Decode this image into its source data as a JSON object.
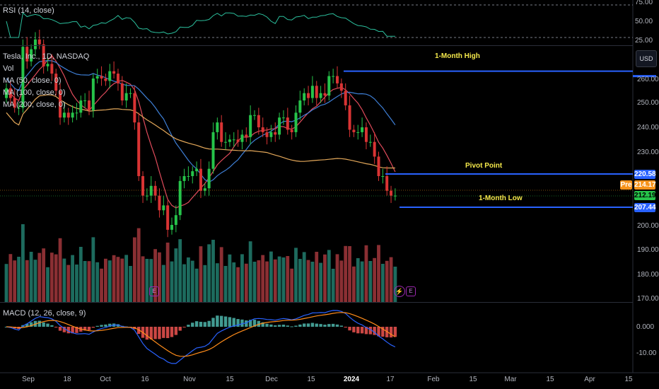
{
  "rsi": {
    "legend": "RSI (14, close)",
    "axis_ticks": [
      "75.00",
      "50.00",
      "25.00"
    ]
  },
  "main": {
    "legend": {
      "symbol": "Tesla, Inc., 1D, NASDAQ",
      "vol": "Vol",
      "ma50": "MA (50, close, 0)",
      "ma100": "MA (100, close, 0)",
      "ma200": "MA (200, close, 0)"
    },
    "currency_button": "USD",
    "axis_ticks": [
      "260.00",
      "250.00",
      "240.00",
      "230.00",
      "200.00",
      "190.00",
      "180.00",
      "170.00"
    ],
    "level_tags": {
      "pivot": "220.58",
      "pre_label": "Pre",
      "pre": "214.17",
      "last": "212.19",
      "low": "207.44"
    },
    "level_names": {
      "high": "1-Month High",
      "pivot": "Pivot Point",
      "low": "1-Month Low"
    },
    "earnings_marker": "E"
  },
  "macd": {
    "legend": "MACD (12, 26, close, 9)",
    "axis_ticks": [
      "0.000",
      "-10.00"
    ]
  },
  "time_axis": [
    "Sep",
    "18",
    "Oct",
    "16",
    "Nov",
    "15",
    "Dec",
    "15",
    "2024",
    "17",
    "Feb",
    "15",
    "Mar",
    "15",
    "Apr",
    "15"
  ],
  "colors": {
    "up": "#26c44a",
    "down": "#d93434",
    "ma50": "#e04b5b",
    "ma100": "#3e7fd6",
    "ma200": "#e4a85a",
    "level": "#2962ff",
    "level_text": "#f5e94b"
  },
  "chart_data": {
    "type": "candlestick",
    "dates": [
      "Sep 5",
      "Sep 6",
      "Sep 7",
      "Sep 8",
      "Sep 11",
      "Sep 12",
      "Sep 13",
      "Sep 14",
      "Sep 15",
      "Sep 18",
      "Sep 19",
      "Sep 20",
      "Sep 21",
      "Sep 22",
      "Sep 25",
      "Sep 26",
      "Sep 27",
      "Sep 28",
      "Sep 29",
      "Oct 2",
      "Oct 3",
      "Oct 4",
      "Oct 5",
      "Oct 6",
      "Oct 9",
      "Oct 10",
      "Oct 11",
      "Oct 12",
      "Oct 13",
      "Oct 16",
      "Oct 17",
      "Oct 18",
      "Oct 19",
      "Oct 20",
      "Oct 23",
      "Oct 24",
      "Oct 25",
      "Oct 26",
      "Oct 27",
      "Oct 30",
      "Oct 31",
      "Nov 1",
      "Nov 2",
      "Nov 3",
      "Nov 6",
      "Nov 7",
      "Nov 8",
      "Nov 9",
      "Nov 10",
      "Nov 13",
      "Nov 14",
      "Nov 15",
      "Nov 16",
      "Nov 17",
      "Nov 20",
      "Nov 21",
      "Nov 22",
      "Nov 24",
      "Nov 27",
      "Nov 28",
      "Nov 29",
      "Nov 30",
      "Dec 1",
      "Dec 4",
      "Dec 5",
      "Dec 6",
      "Dec 7",
      "Dec 8",
      "Dec 11",
      "Dec 12",
      "Dec 13",
      "Dec 14",
      "Dec 15",
      "Dec 18",
      "Dec 19",
      "Dec 20",
      "Dec 21",
      "Dec 22",
      "Dec 26",
      "Dec 27",
      "Dec 28",
      "Dec 29",
      "Jan 2",
      "Jan 3",
      "Jan 4",
      "Jan 5",
      "Jan 8",
      "Jan 9",
      "Jan 10",
      "Jan 11",
      "Jan 12",
      "Jan 16",
      "Jan 17",
      "Jan 18",
      "Jan 19"
    ],
    "close": [
      256,
      252,
      248,
      248,
      273,
      267,
      272,
      276,
      274,
      265,
      266,
      262,
      255,
      244,
      246,
      244,
      246,
      246,
      251,
      251,
      247,
      260,
      261,
      260,
      259,
      263,
      262,
      258,
      251,
      254,
      254,
      242,
      220,
      212,
      212,
      216,
      212,
      206,
      208,
      198,
      200,
      204,
      218,
      220,
      220,
      222,
      223,
      214,
      215,
      223,
      238,
      242,
      234,
      234,
      235,
      235,
      234,
      237,
      236,
      245,
      245,
      240,
      238,
      236,
      238,
      237,
      244,
      244,
      239,
      238,
      246,
      251,
      254,
      252,
      257,
      252,
      254,
      253,
      261,
      261,
      258,
      255,
      249,
      239,
      238,
      238,
      240,
      234,
      234,
      228,
      220,
      220,
      214,
      212,
      212
    ],
    "open": [
      252,
      256,
      252,
      248,
      248,
      273,
      267,
      272,
      276,
      274,
      265,
      266,
      262,
      255,
      244,
      246,
      244,
      246,
      246,
      251,
      251,
      247,
      260,
      261,
      260,
      259,
      263,
      262,
      258,
      251,
      254,
      254,
      242,
      220,
      212,
      212,
      216,
      212,
      206,
      208,
      198,
      200,
      204,
      218,
      220,
      220,
      222,
      223,
      214,
      215,
      223,
      238,
      242,
      234,
      234,
      235,
      235,
      234,
      237,
      236,
      245,
      245,
      240,
      238,
      236,
      238,
      237,
      244,
      244,
      239,
      238,
      246,
      251,
      254,
      252,
      257,
      252,
      254,
      253,
      261,
      261,
      258,
      255,
      249,
      239,
      238,
      238,
      240,
      234,
      234,
      228,
      220,
      220,
      214,
      212
    ],
    "ma_labels": [
      "MA 50",
      "MA 100",
      "MA 200"
    ],
    "levels": {
      "one_month_high": 263,
      "pivot_point": 220.58,
      "one_month_low": 207.44,
      "pre_market": 214.17,
      "last": 212.19
    },
    "rsi_range": [
      25,
      75
    ],
    "macd_range": [
      -15,
      5
    ]
  }
}
